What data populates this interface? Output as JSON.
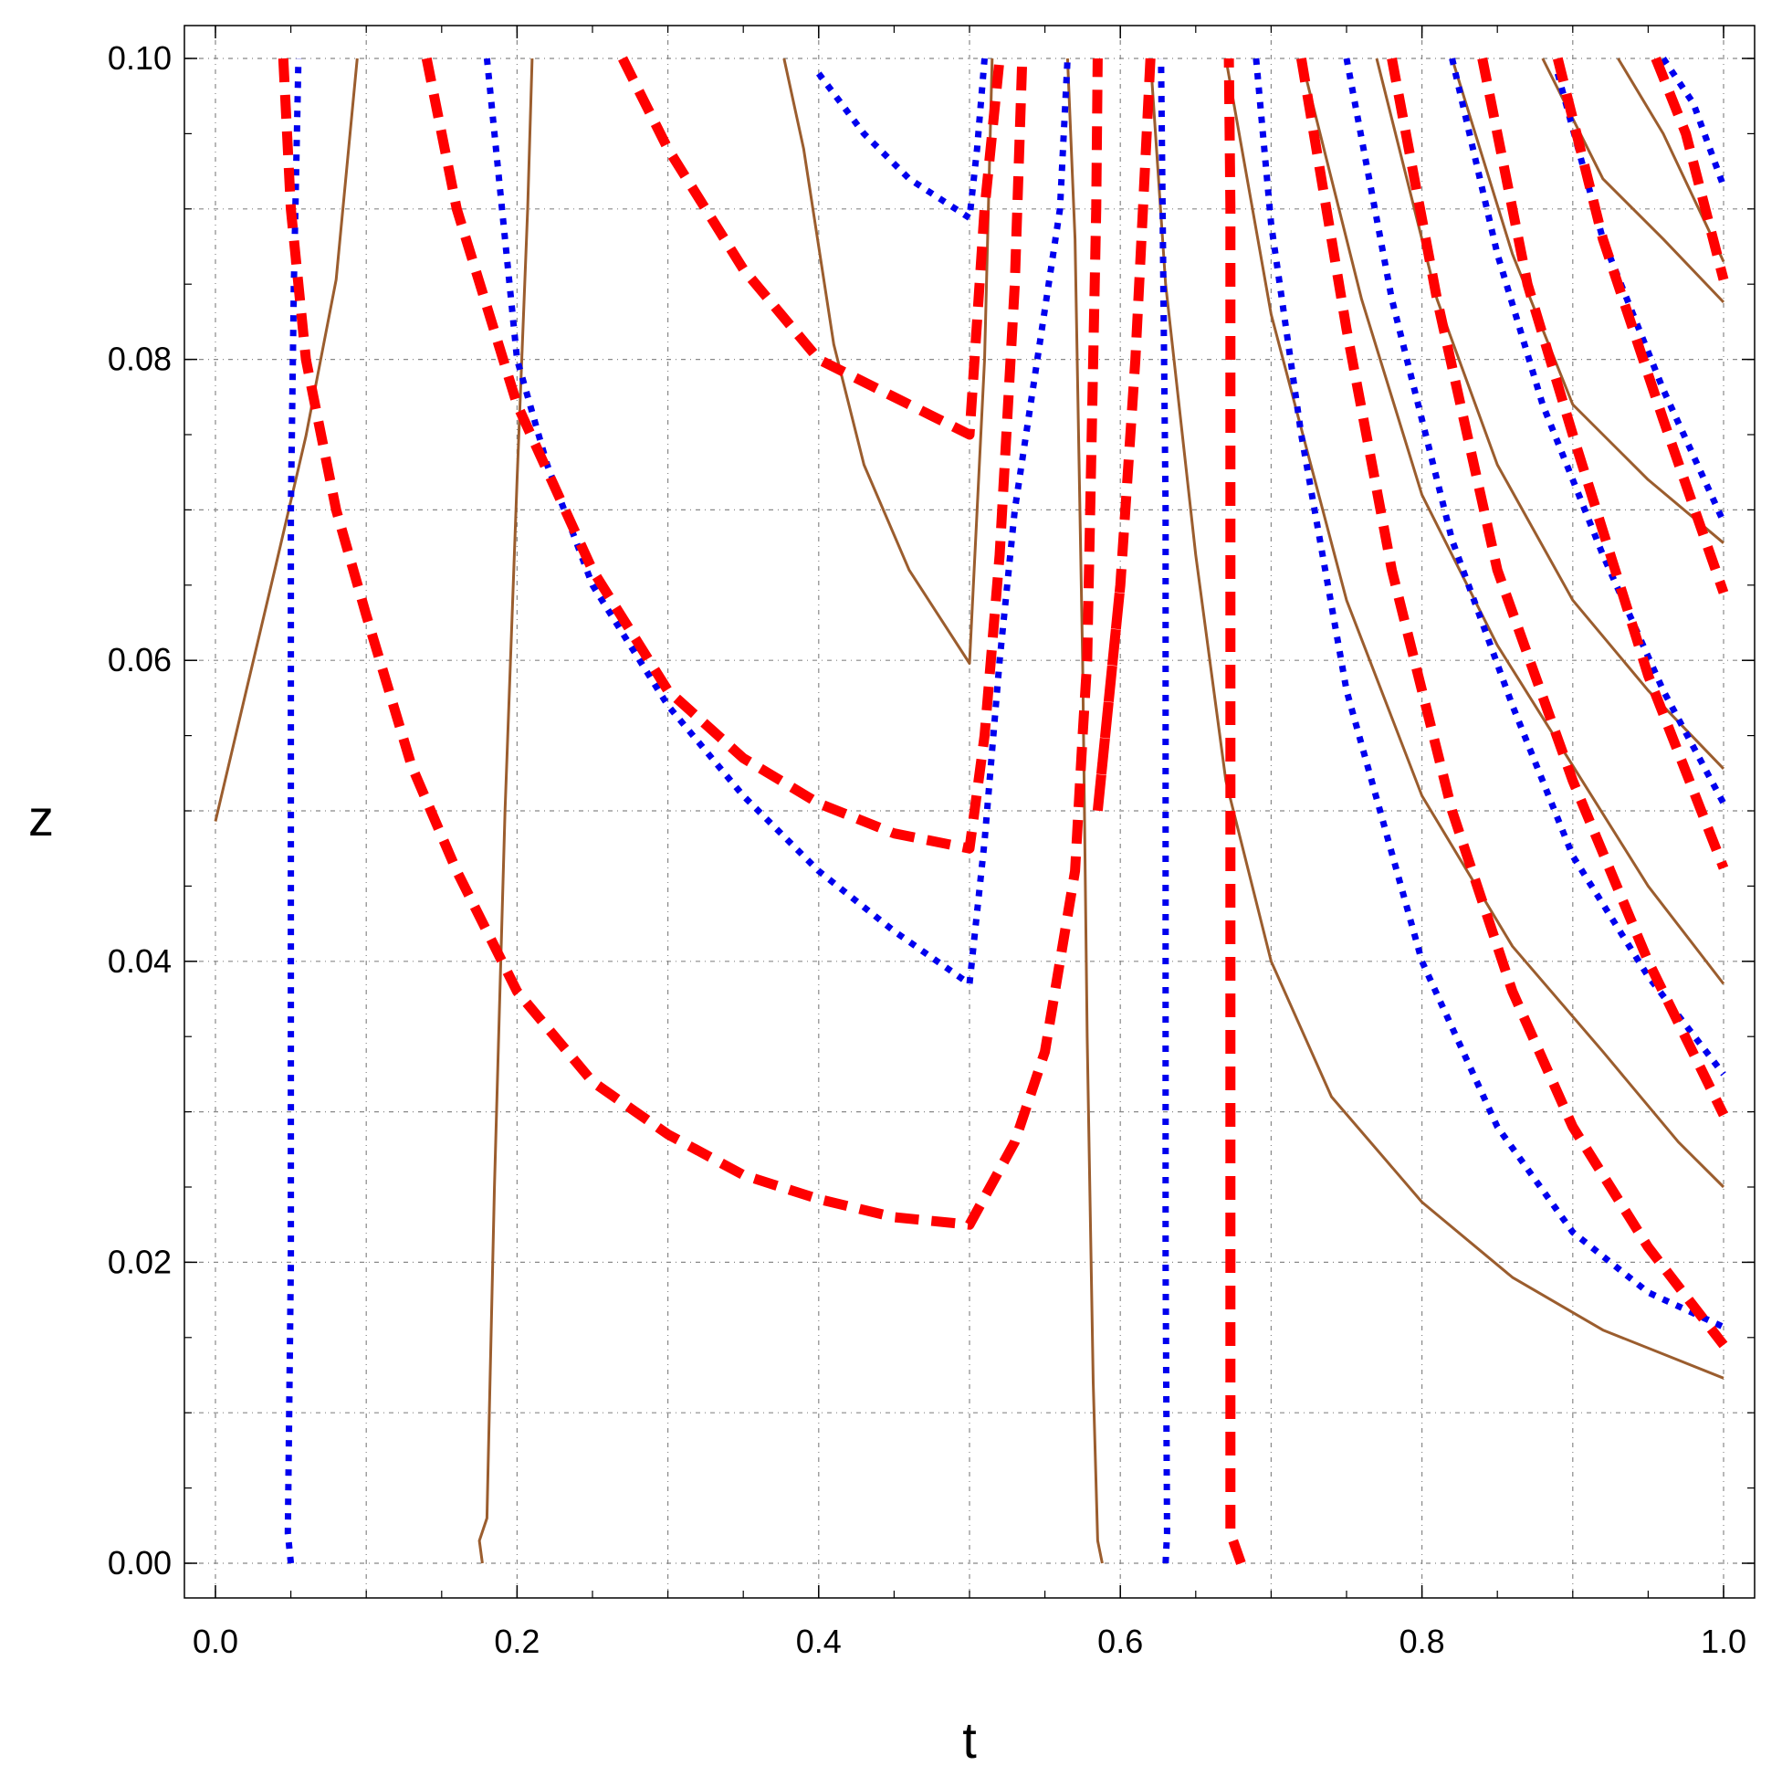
{
  "chart_data": {
    "type": "line",
    "title": "",
    "xlabel": "t",
    "ylabel": "z",
    "xlim": [
      0.0,
      1.0
    ],
    "ylim": [
      0.0,
      0.1
    ],
    "x_ticks": [
      "0.0",
      "0.2",
      "0.4",
      "0.6",
      "0.8",
      "1.0"
    ],
    "y_ticks": [
      "0.00",
      "0.02",
      "0.04",
      "0.06",
      "0.08",
      "0.10"
    ],
    "grid": true,
    "legend": "none",
    "colors": {
      "solid": "#9b5d2e",
      "dotted": "#0000ee",
      "dashed": "#ff0000",
      "grid": "#888888",
      "axis": "#000000"
    },
    "series": [
      {
        "style": "solid",
        "points": [
          [
            0.0,
            0.0493
          ],
          [
            0.02,
            0.0578
          ],
          [
            0.04,
            0.0663
          ],
          [
            0.06,
            0.0749
          ],
          [
            0.08,
            0.0853
          ],
          [
            0.094,
            0.1
          ]
        ]
      },
      {
        "style": "solid",
        "points": [
          [
            0.177,
            0.0
          ],
          [
            0.175,
            0.0015
          ],
          [
            0.18,
            0.003
          ],
          [
            0.185,
            0.025
          ],
          [
            0.192,
            0.05
          ],
          [
            0.2,
            0.072
          ],
          [
            0.207,
            0.09
          ],
          [
            0.21,
            0.1
          ]
        ]
      },
      {
        "style": "solid",
        "points": [
          [
            0.377,
            0.1
          ],
          [
            0.39,
            0.094
          ],
          [
            0.41,
            0.081
          ],
          [
            0.43,
            0.073
          ],
          [
            0.46,
            0.066
          ],
          [
            0.5,
            0.0598
          ],
          [
            0.51,
            0.08
          ],
          [
            0.515,
            0.1
          ]
        ]
      },
      {
        "style": "solid",
        "points": [
          [
            0.565,
            0.1
          ],
          [
            0.57,
            0.088
          ],
          [
            0.575,
            0.06
          ],
          [
            0.578,
            0.035
          ],
          [
            0.582,
            0.012
          ],
          [
            0.585,
            0.0015
          ],
          [
            0.588,
            0.0
          ]
        ]
      },
      {
        "style": "solid",
        "points": [
          [
            0.62,
            0.1
          ],
          [
            0.63,
            0.085
          ],
          [
            0.65,
            0.067
          ],
          [
            0.67,
            0.052
          ],
          [
            0.7,
            0.04
          ],
          [
            0.74,
            0.031
          ],
          [
            0.8,
            0.024
          ],
          [
            0.86,
            0.019
          ],
          [
            0.92,
            0.0155
          ],
          [
            0.97,
            0.0135
          ],
          [
            1.0,
            0.0123
          ]
        ]
      },
      {
        "style": "solid",
        "points": [
          [
            0.67,
            0.1
          ],
          [
            0.7,
            0.083
          ],
          [
            0.75,
            0.064
          ],
          [
            0.8,
            0.051
          ],
          [
            0.86,
            0.041
          ],
          [
            0.92,
            0.034
          ],
          [
            0.97,
            0.028
          ],
          [
            1.0,
            0.025
          ]
        ]
      },
      {
        "style": "solid",
        "points": [
          [
            0.72,
            0.1
          ],
          [
            0.76,
            0.084
          ],
          [
            0.8,
            0.071
          ],
          [
            0.85,
            0.061
          ],
          [
            0.9,
            0.053
          ],
          [
            0.95,
            0.045
          ],
          [
            1.0,
            0.0385
          ]
        ]
      },
      {
        "style": "solid",
        "points": [
          [
            0.77,
            0.1
          ],
          [
            0.81,
            0.084
          ],
          [
            0.85,
            0.073
          ],
          [
            0.9,
            0.064
          ],
          [
            0.95,
            0.058
          ],
          [
            1.0,
            0.0528
          ]
        ]
      },
      {
        "style": "solid",
        "points": [
          [
            0.82,
            0.1
          ],
          [
            0.86,
            0.087
          ],
          [
            0.9,
            0.077
          ],
          [
            0.95,
            0.072
          ],
          [
            1.0,
            0.0678
          ]
        ]
      },
      {
        "style": "solid",
        "points": [
          [
            0.88,
            0.1
          ],
          [
            0.92,
            0.092
          ],
          [
            0.96,
            0.088
          ],
          [
            1.0,
            0.0838
          ]
        ]
      },
      {
        "style": "solid",
        "points": [
          [
            0.93,
            0.1
          ],
          [
            0.96,
            0.095
          ],
          [
            1.0,
            0.0865
          ]
        ]
      },
      {
        "style": "dotted",
        "points": [
          [
            0.05,
            0.0
          ],
          [
            0.048,
            0.002
          ],
          [
            0.05,
            0.02
          ],
          [
            0.05,
            0.05
          ],
          [
            0.05,
            0.07
          ],
          [
            0.052,
            0.085
          ],
          [
            0.055,
            0.1
          ]
        ]
      },
      {
        "style": "dotted",
        "points": [
          [
            0.18,
            0.1
          ],
          [
            0.19,
            0.09
          ],
          [
            0.2,
            0.08
          ],
          [
            0.22,
            0.073
          ],
          [
            0.25,
            0.065
          ],
          [
            0.3,
            0.057
          ],
          [
            0.35,
            0.051
          ],
          [
            0.4,
            0.046
          ],
          [
            0.45,
            0.042
          ],
          [
            0.5,
            0.0385
          ],
          [
            0.51,
            0.048
          ],
          [
            0.52,
            0.06
          ],
          [
            0.53,
            0.07
          ],
          [
            0.545,
            0.08
          ],
          [
            0.56,
            0.09
          ],
          [
            0.565,
            0.1
          ]
        ]
      },
      {
        "style": "dotted",
        "points": [
          [
            0.4,
            0.099
          ],
          [
            0.43,
            0.095
          ],
          [
            0.46,
            0.092
          ],
          [
            0.5,
            0.0894
          ],
          [
            0.505,
            0.094
          ],
          [
            0.51,
            0.1
          ]
        ]
      },
      {
        "style": "dotted",
        "points": [
          [
            0.63,
            0.0
          ],
          [
            0.631,
            0.002
          ],
          [
            0.63,
            0.02
          ],
          [
            0.63,
            0.05
          ],
          [
            0.63,
            0.07
          ],
          [
            0.628,
            0.09
          ],
          [
            0.627,
            0.1
          ]
        ]
      },
      {
        "style": "dotted",
        "points": [
          [
            0.69,
            0.1
          ],
          [
            0.7,
            0.089
          ],
          [
            0.72,
            0.075
          ],
          [
            0.75,
            0.058
          ],
          [
            0.8,
            0.04
          ],
          [
            0.85,
            0.029
          ],
          [
            0.9,
            0.022
          ],
          [
            0.95,
            0.018
          ],
          [
            1.0,
            0.0157
          ]
        ]
      },
      {
        "style": "dotted",
        "points": [
          [
            0.75,
            0.1
          ],
          [
            0.78,
            0.084
          ],
          [
            0.82,
            0.068
          ],
          [
            0.86,
            0.057
          ],
          [
            0.9,
            0.047
          ],
          [
            0.95,
            0.039
          ],
          [
            1.0,
            0.0325
          ]
        ]
      },
      {
        "style": "dotted",
        "points": [
          [
            0.82,
            0.1
          ],
          [
            0.85,
            0.087
          ],
          [
            0.88,
            0.077
          ],
          [
            0.92,
            0.067
          ],
          [
            0.96,
            0.058
          ],
          [
            1.0,
            0.0505
          ]
        ]
      },
      {
        "style": "dotted",
        "points": [
          [
            0.89,
            0.099
          ],
          [
            0.92,
            0.088
          ],
          [
            0.96,
            0.078
          ],
          [
            1.0,
            0.0692
          ]
        ]
      },
      {
        "style": "dotted",
        "points": [
          [
            0.96,
            0.1
          ],
          [
            0.98,
            0.097
          ],
          [
            1.0,
            0.0915
          ]
        ]
      },
      {
        "style": "dashed",
        "points": [
          [
            0.045,
            0.1
          ],
          [
            0.05,
            0.09
          ],
          [
            0.06,
            0.08
          ],
          [
            0.08,
            0.07
          ],
          [
            0.1,
            0.063
          ],
          [
            0.13,
            0.053
          ],
          [
            0.16,
            0.046
          ],
          [
            0.2,
            0.038
          ],
          [
            0.25,
            0.032
          ],
          [
            0.3,
            0.0285
          ],
          [
            0.35,
            0.0258
          ],
          [
            0.4,
            0.0242
          ],
          [
            0.45,
            0.023
          ],
          [
            0.5,
            0.0225
          ],
          [
            0.53,
            0.028
          ],
          [
            0.55,
            0.034
          ],
          [
            0.57,
            0.046
          ],
          [
            0.575,
            0.055
          ],
          [
            0.578,
            0.06
          ],
          [
            0.58,
            0.07
          ],
          [
            0.582,
            0.08
          ],
          [
            0.584,
            0.09
          ],
          [
            0.585,
            0.1
          ]
        ]
      },
      {
        "style": "dashed",
        "points": [
          [
            0.14,
            0.1
          ],
          [
            0.16,
            0.09
          ],
          [
            0.2,
            0.077
          ],
          [
            0.25,
            0.066
          ],
          [
            0.3,
            0.058
          ],
          [
            0.35,
            0.0535
          ],
          [
            0.4,
            0.0505
          ],
          [
            0.45,
            0.0485
          ],
          [
            0.5,
            0.0475
          ],
          [
            0.51,
            0.055
          ],
          [
            0.52,
            0.067
          ],
          [
            0.53,
            0.085
          ],
          [
            0.535,
            0.1
          ]
        ]
      },
      {
        "style": "dashed",
        "points": [
          [
            0.27,
            0.1
          ],
          [
            0.3,
            0.094
          ],
          [
            0.35,
            0.086
          ],
          [
            0.4,
            0.08
          ],
          [
            0.45,
            0.0775
          ],
          [
            0.5,
            0.075
          ],
          [
            0.51,
            0.09
          ],
          [
            0.52,
            0.1
          ]
        ]
      },
      {
        "style": "dashed",
        "points": [
          [
            0.68,
            0.0
          ],
          [
            0.673,
            0.002
          ],
          [
            0.673,
            0.03
          ],
          [
            0.673,
            0.06
          ],
          [
            0.673,
            0.09
          ],
          [
            0.672,
            0.1
          ]
        ]
      },
      {
        "style": "dashed",
        "points": [
          [
            0.62,
            0.1
          ],
          [
            0.615,
            0.09
          ],
          [
            0.61,
            0.08
          ],
          [
            0.6,
            0.065
          ],
          [
            0.585,
            0.05
          ],
          [
            0.6,
            0.065
          ]
        ]
      },
      {
        "style": "dashed",
        "points": [
          [
            0.72,
            0.1
          ],
          [
            0.75,
            0.082
          ],
          [
            0.78,
            0.066
          ],
          [
            0.82,
            0.05
          ],
          [
            0.86,
            0.038
          ],
          [
            0.9,
            0.029
          ],
          [
            0.95,
            0.021
          ],
          [
            1.0,
            0.0145
          ]
        ]
      },
      {
        "style": "dashed",
        "points": [
          [
            0.78,
            0.1
          ],
          [
            0.81,
            0.084
          ],
          [
            0.85,
            0.066
          ],
          [
            0.9,
            0.052
          ],
          [
            0.95,
            0.04
          ],
          [
            1.0,
            0.0298
          ]
        ]
      },
      {
        "style": "dashed",
        "points": [
          [
            0.84,
            0.1
          ],
          [
            0.87,
            0.085
          ],
          [
            0.9,
            0.075
          ],
          [
            0.95,
            0.059
          ],
          [
            1.0,
            0.0462
          ]
        ]
      },
      {
        "style": "dashed",
        "points": [
          [
            0.89,
            0.1
          ],
          [
            0.92,
            0.088
          ],
          [
            0.96,
            0.076
          ],
          [
            1.0,
            0.0645
          ]
        ]
      },
      {
        "style": "dashed",
        "points": [
          [
            0.955,
            0.1
          ],
          [
            0.975,
            0.095
          ],
          [
            1.0,
            0.0853
          ]
        ]
      }
    ]
  }
}
